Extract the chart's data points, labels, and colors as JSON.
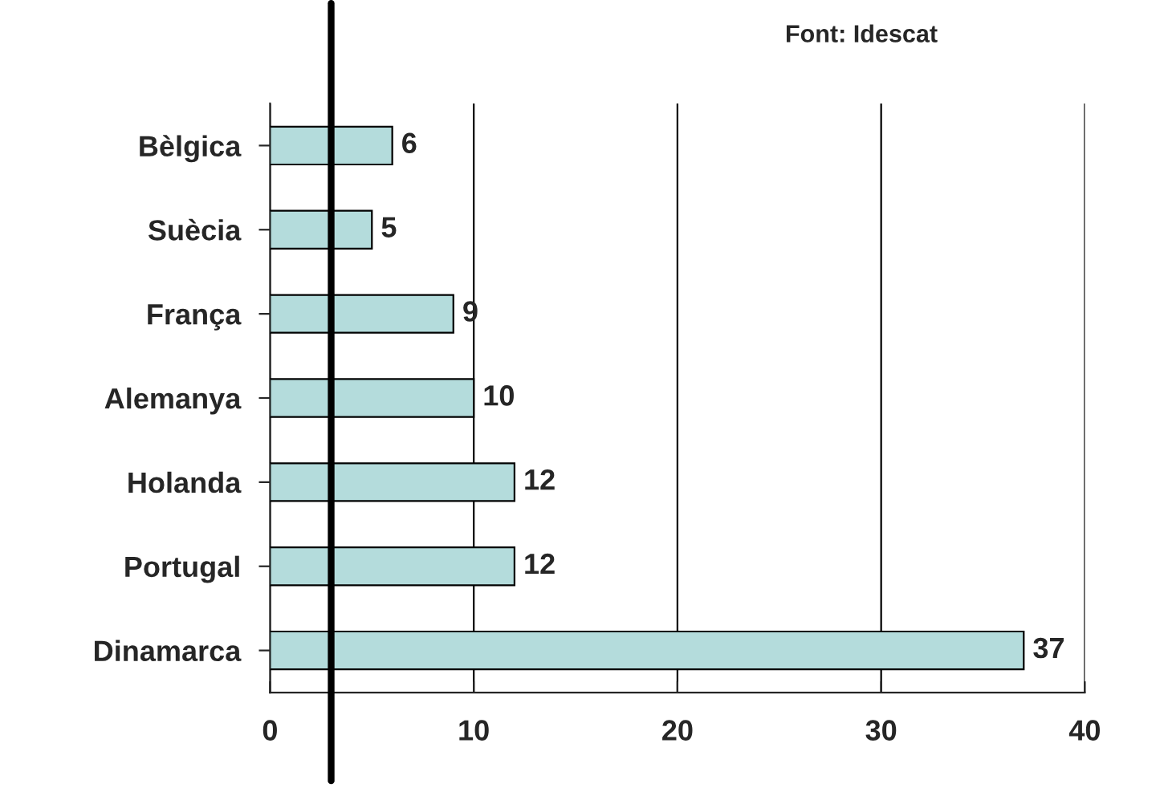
{
  "chart_data": {
    "type": "bar",
    "orientation": "horizontal",
    "categories": [
      "Bèlgica",
      "Suècia",
      "França",
      "Alemanya",
      "Holanda",
      "Portugal",
      "Dinamarca"
    ],
    "values": [
      6,
      5,
      9,
      10,
      12,
      12,
      37
    ],
    "color": "#b4dcdc",
    "xlim": [
      0,
      40
    ],
    "xticks": [
      0,
      10,
      20,
      30,
      40
    ],
    "grid": "x",
    "data_labels": true,
    "annotations": [
      "Font: Idescat"
    ],
    "ref_lines": [
      {
        "axis": "x",
        "value": 3,
        "color": "#000000"
      }
    ]
  }
}
